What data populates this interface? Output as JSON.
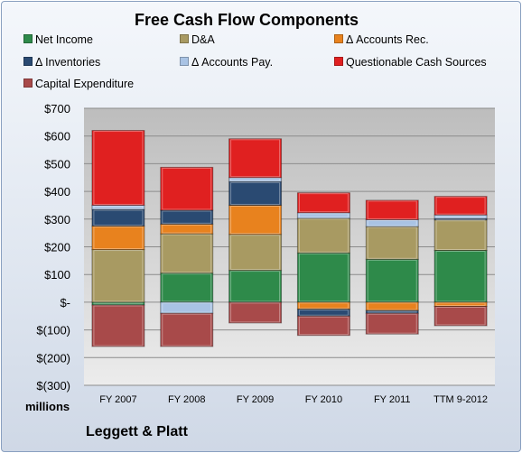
{
  "chart_data": {
    "type": "bar",
    "stacked": true,
    "title": "Free Cash Flow Components",
    "units_label": "millions",
    "company": "Leggett & Platt",
    "categories": [
      "FY 2007",
      "FY 2008",
      "FY 2009",
      "FY 2010",
      "FY 2011",
      "TTM 9-2012"
    ],
    "ylim": [
      -300,
      700
    ],
    "yticks": [
      700,
      600,
      500,
      400,
      300,
      200,
      100,
      0,
      -100,
      -200,
      -300
    ],
    "ytick_labels": [
      "$700",
      "$600",
      "$500",
      "$400",
      "$300",
      "$200",
      "$100",
      "$-",
      "$(100)",
      "$(200)",
      "$(300)"
    ],
    "grid": true,
    "legend_position": "top",
    "series": [
      {
        "name": "Net Income",
        "color": "#2e8a4a",
        "values": [
          -10,
          105,
          115,
          178,
          155,
          187
        ]
      },
      {
        "name": "D&A",
        "color": "#a89a62",
        "values": [
          190,
          142,
          130,
          125,
          118,
          110
        ]
      },
      {
        "name": "Δ Accounts Rec.",
        "color": "#e8821e",
        "values": [
          85,
          35,
          105,
          -25,
          -30,
          -15
        ]
      },
      {
        "name": "Δ Inventories",
        "color": "#2a4a72",
        "values": [
          60,
          50,
          85,
          -25,
          -10,
          5
        ]
      },
      {
        "name": "Δ Accounts Pay.",
        "color": "#a9c3e4",
        "values": [
          15,
          -40,
          15,
          20,
          25,
          13
        ]
      },
      {
        "name": "Questionable Cash Sources",
        "color": "#e02020",
        "values": [
          270,
          155,
          140,
          72,
          70,
          67
        ]
      },
      {
        "name": "Capital Expenditure",
        "color": "#a84a4a",
        "values": [
          -150,
          -120,
          -75,
          -70,
          -75,
          -70
        ]
      }
    ]
  }
}
